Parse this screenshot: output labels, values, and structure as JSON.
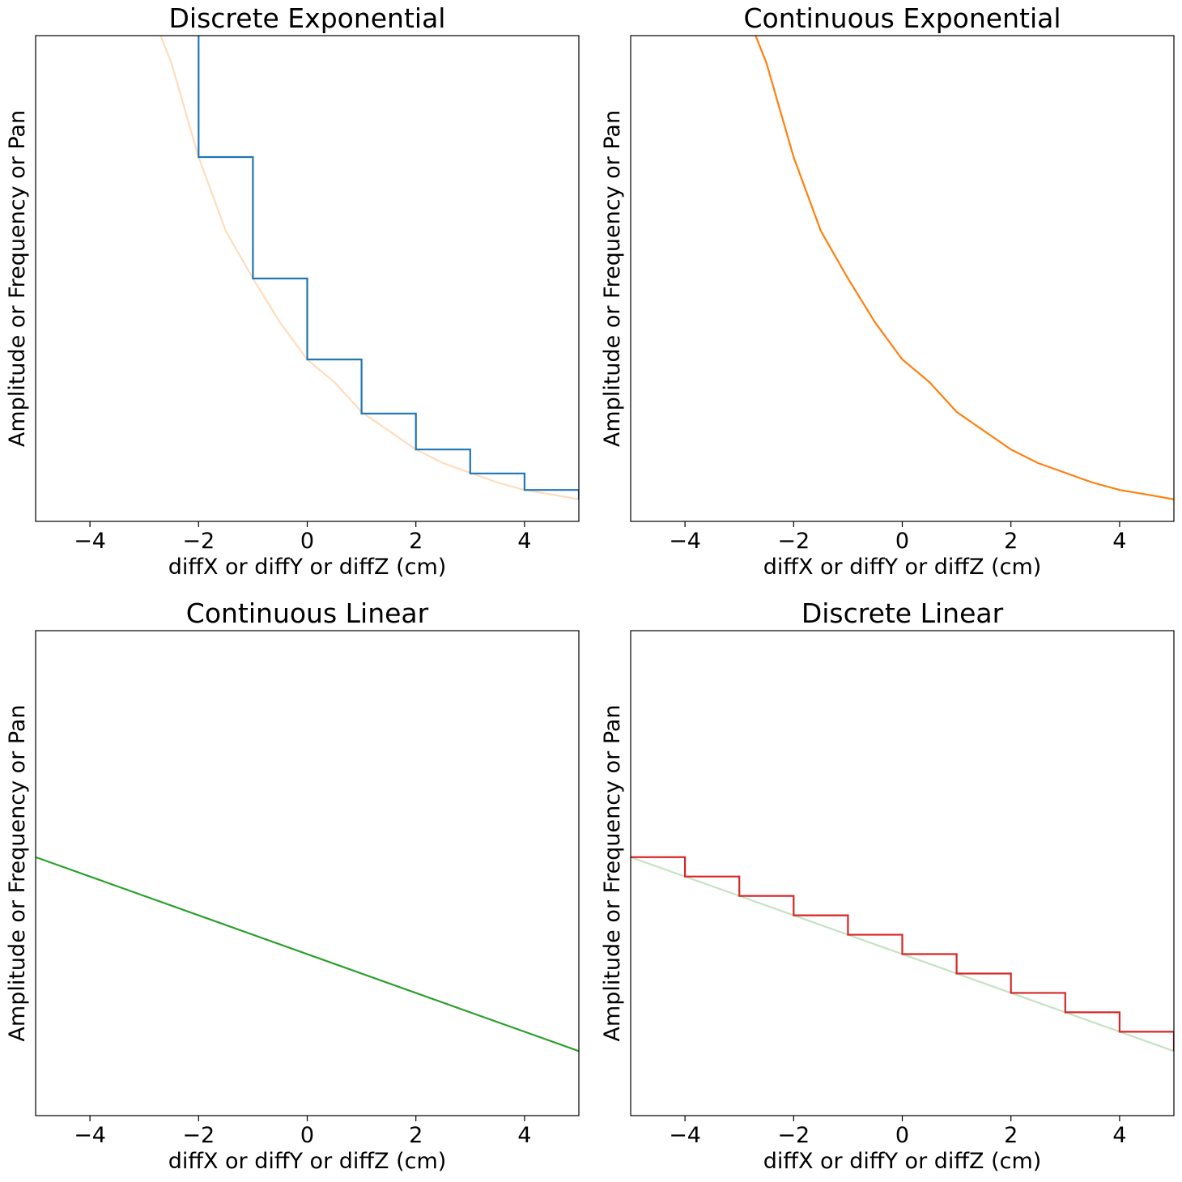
{
  "chart_data": [
    {
      "type": "line",
      "title": "Discrete Exponential",
      "xlabel": "diffX or diffY or diffZ (cm)",
      "ylabel": "Amplitude or Frequency or Pan",
      "xlim": [
        -5,
        5
      ],
      "ylim": [
        0,
        1.5
      ],
      "xticks": [
        -4,
        -2,
        0,
        2,
        4
      ],
      "yticks_visible": false,
      "grid": false,
      "series": [
        {
          "kind": "curve",
          "color": "#ffdcbc",
          "x": [
            -2.7,
            -2.5,
            -2.0,
            -1.5,
            -1.0,
            -0.5,
            0.0,
            0.5,
            1.0,
            1.5,
            2.0,
            2.5,
            3.0,
            3.5,
            4.0,
            4.5,
            5.0
          ],
          "y": [
            1.5,
            1.415,
            1.125,
            0.897,
            0.75,
            0.614,
            0.5,
            0.43,
            0.338,
            0.28,
            0.222,
            0.18,
            0.15,
            0.12,
            0.097,
            0.083,
            0.068
          ]
        },
        {
          "kind": "step",
          "color": "#1f77b4",
          "x": [
            -2,
            -2,
            -1,
            -1,
            0,
            0,
            1,
            1,
            2,
            2,
            3,
            3,
            4,
            4,
            5,
            5
          ],
          "y": [
            1.5,
            1.125,
            1.125,
            0.75,
            0.75,
            0.5,
            0.5,
            0.333,
            0.333,
            0.222,
            0.222,
            0.148,
            0.148,
            0.097,
            0.097,
            0.068
          ]
        }
      ]
    },
    {
      "type": "line",
      "title": "Continuous Exponential",
      "xlabel": "diffX or diffY or diffZ (cm)",
      "ylabel": "Amplitude or Frequency or Pan",
      "xlim": [
        -5,
        5
      ],
      "ylim": [
        0,
        1.5
      ],
      "xticks": [
        -4,
        -2,
        0,
        2,
        4
      ],
      "yticks_visible": false,
      "grid": false,
      "series": [
        {
          "kind": "curve",
          "color": "#ff7f0e",
          "x": [
            -2.7,
            -2.5,
            -2.0,
            -1.5,
            -1.0,
            -0.5,
            0.0,
            0.5,
            1.0,
            1.5,
            2.0,
            2.5,
            3.0,
            3.5,
            4.0,
            4.5,
            5.0
          ],
          "y": [
            1.5,
            1.415,
            1.125,
            0.897,
            0.75,
            0.614,
            0.5,
            0.43,
            0.338,
            0.28,
            0.222,
            0.18,
            0.15,
            0.12,
            0.097,
            0.083,
            0.068
          ]
        }
      ]
    },
    {
      "type": "line",
      "title": "Continuous Linear",
      "xlabel": "diffX or diffY or diffZ (cm)",
      "ylabel": "Amplitude or Frequency or Pan",
      "xlim": [
        -5,
        5
      ],
      "ylim": [
        0,
        1.0
      ],
      "xticks": [
        -4,
        -2,
        0,
        2,
        4
      ],
      "yticks_visible": false,
      "grid": false,
      "series": [
        {
          "kind": "curve",
          "color": "#2ca02c",
          "x": [
            -5,
            5
          ],
          "y": [
            0.533,
            0.133
          ]
        }
      ]
    },
    {
      "type": "line",
      "title": "Discrete Linear",
      "xlabel": "diffX or diffY or diffZ (cm)",
      "ylabel": "Amplitude or Frequency or Pan",
      "xlim": [
        -5,
        5
      ],
      "ylim": [
        0,
        1.0
      ],
      "xticks": [
        -4,
        -2,
        0,
        2,
        4
      ],
      "yticks_visible": false,
      "grid": false,
      "series": [
        {
          "kind": "curve",
          "color": "#c4e3c2",
          "x": [
            -5,
            5
          ],
          "y": [
            0.533,
            0.133
          ]
        },
        {
          "kind": "step",
          "color": "#d62728",
          "x": [
            -5,
            -4,
            -4,
            -3,
            -3,
            -2,
            -2,
            -1,
            -1,
            0,
            0,
            1,
            1,
            2,
            2,
            3,
            3,
            4,
            4,
            5,
            5
          ],
          "y": [
            0.533,
            0.533,
            0.493,
            0.493,
            0.453,
            0.453,
            0.413,
            0.413,
            0.373,
            0.373,
            0.333,
            0.333,
            0.293,
            0.293,
            0.253,
            0.253,
            0.213,
            0.213,
            0.173,
            0.173,
            0.133
          ]
        }
      ]
    }
  ]
}
